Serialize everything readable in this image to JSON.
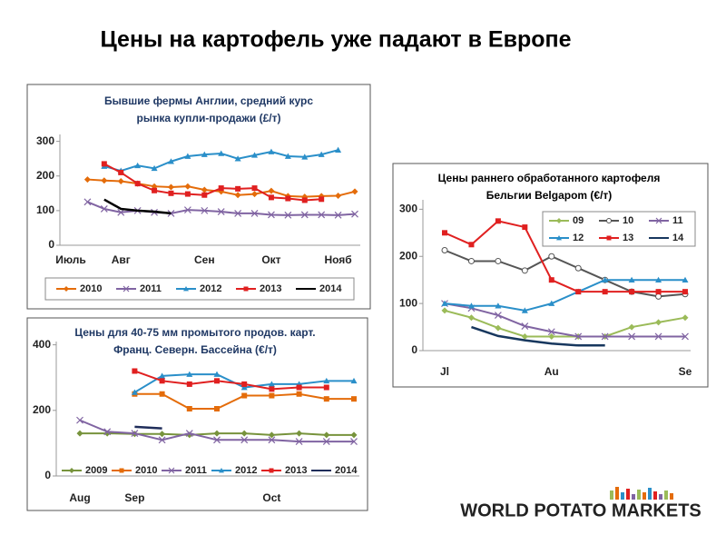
{
  "title": "Цены на картофель уже падают в Европе",
  "logo": "WORLD POTATO MARKETS",
  "chart_data": [
    {
      "type": "line",
      "title": [
        "Бывшие фермы Англии, средний курс",
        "рынка купли-продажи (£/т)"
      ],
      "categories": [
        "Июль",
        null,
        null,
        "Авг",
        null,
        null,
        null,
        null,
        "Сен",
        null,
        null,
        null,
        "Окт",
        null,
        null,
        null,
        "Нояб",
        null
      ],
      "ylim": [
        0,
        320
      ],
      "yticks": [
        0,
        100,
        200,
        300
      ],
      "grid": false,
      "legend": "bottom",
      "series": [
        {
          "name": "2010",
          "color": "#e46c0a",
          "marker": "diamond",
          "values": [
            null,
            190,
            187,
            185,
            178,
            170,
            168,
            170,
            160,
            155,
            145,
            148,
            157,
            142,
            140,
            142,
            143,
            155
          ]
        },
        {
          "name": "2011",
          "color": "#8064a2",
          "marker": "x",
          "values": [
            null,
            125,
            105,
            95,
            100,
            95,
            92,
            102,
            100,
            97,
            92,
            92,
            88,
            87,
            88,
            88,
            87,
            90
          ]
        },
        {
          "name": "2012",
          "color": "#2a8fc9",
          "marker": "triangle",
          "values": [
            null,
            null,
            228,
            215,
            230,
            222,
            242,
            257,
            262,
            265,
            250,
            260,
            270,
            257,
            255,
            262,
            275,
            null
          ]
        },
        {
          "name": "2013",
          "color": "#e02020",
          "marker": "square",
          "values": [
            null,
            null,
            235,
            210,
            178,
            158,
            150,
            148,
            145,
            165,
            163,
            165,
            138,
            135,
            130,
            133,
            null,
            null
          ]
        },
        {
          "name": "2014",
          "color": "#000000",
          "marker": "none",
          "values": [
            null,
            null,
            132,
            105,
            100,
            97,
            92,
            null,
            null,
            null,
            null,
            null,
            null,
            null,
            null,
            null,
            null,
            null
          ]
        }
      ]
    },
    {
      "type": "line",
      "title": [
        "Цены для 40-75 мм промытого продов. карт.",
        "Франц. Северн. Бассейна (€/т)"
      ],
      "categories": [
        "Aug",
        null,
        "Sep",
        null,
        null,
        null,
        null,
        "Oct",
        null,
        null,
        null
      ],
      "ylim": [
        0,
        410
      ],
      "yticks": [
        0,
        200,
        400
      ],
      "grid": false,
      "legend": "bottom",
      "series": [
        {
          "name": "2009",
          "color": "#77933c",
          "marker": "diamond",
          "values": [
            130,
            130,
            128,
            128,
            125,
            130,
            130,
            125,
            130,
            125,
            125
          ]
        },
        {
          "name": "2010",
          "color": "#e46c0a",
          "marker": "square",
          "values": [
            null,
            null,
            250,
            250,
            205,
            205,
            245,
            245,
            250,
            235,
            235
          ]
        },
        {
          "name": "2011",
          "color": "#8064a2",
          "marker": "x",
          "values": [
            170,
            135,
            130,
            110,
            130,
            110,
            110,
            110,
            105,
            105,
            105
          ]
        },
        {
          "name": "2012",
          "color": "#2a8fc9",
          "marker": "triangle",
          "values": [
            null,
            null,
            255,
            305,
            310,
            310,
            270,
            280,
            280,
            290,
            290
          ]
        },
        {
          "name": "2013",
          "color": "#e02020",
          "marker": "square",
          "values": [
            null,
            null,
            320,
            290,
            280,
            290,
            280,
            265,
            270,
            270,
            null
          ]
        },
        {
          "name": "2014",
          "color": "#1f2d5a",
          "marker": "none",
          "values": [
            null,
            null,
            150,
            145,
            null,
            null,
            null,
            null,
            null,
            null,
            null
          ]
        }
      ]
    },
    {
      "type": "line",
      "title": [
        "Цены раннего обработанного картофеля",
        "Бельгии Belgapom (€/т)"
      ],
      "categories": [
        "Jl",
        null,
        null,
        null,
        "Au",
        null,
        null,
        null,
        null,
        "Se"
      ],
      "ylim": [
        0,
        320
      ],
      "yticks": [
        0,
        100,
        200,
        300
      ],
      "grid": false,
      "legend": "top-right",
      "series": [
        {
          "name": "09",
          "color": "#9bbb59",
          "marker": "diamond",
          "values": [
            85,
            70,
            48,
            30,
            30,
            30,
            30,
            50,
            60,
            70
          ]
        },
        {
          "name": "10",
          "color": "#555555",
          "marker": "circle",
          "values": [
            213,
            190,
            190,
            170,
            200,
            175,
            150,
            125,
            115,
            120
          ]
        },
        {
          "name": "11",
          "color": "#8064a2",
          "marker": "x",
          "values": [
            100,
            90,
            75,
            52,
            40,
            30,
            30,
            30,
            30,
            30
          ]
        },
        {
          "name": "12",
          "color": "#2a8fc9",
          "marker": "triangle",
          "values": [
            100,
            95,
            95,
            85,
            100,
            125,
            150,
            150,
            150,
            150
          ]
        },
        {
          "name": "13",
          "color": "#e02020",
          "marker": "square",
          "values": [
            250,
            225,
            275,
            262,
            150,
            125,
            125,
            125,
            125,
            125
          ]
        },
        {
          "name": "14",
          "color": "#17375e",
          "marker": "none",
          "values": [
            null,
            50,
            31,
            22,
            15,
            11,
            11,
            null,
            null,
            null
          ]
        }
      ]
    }
  ]
}
